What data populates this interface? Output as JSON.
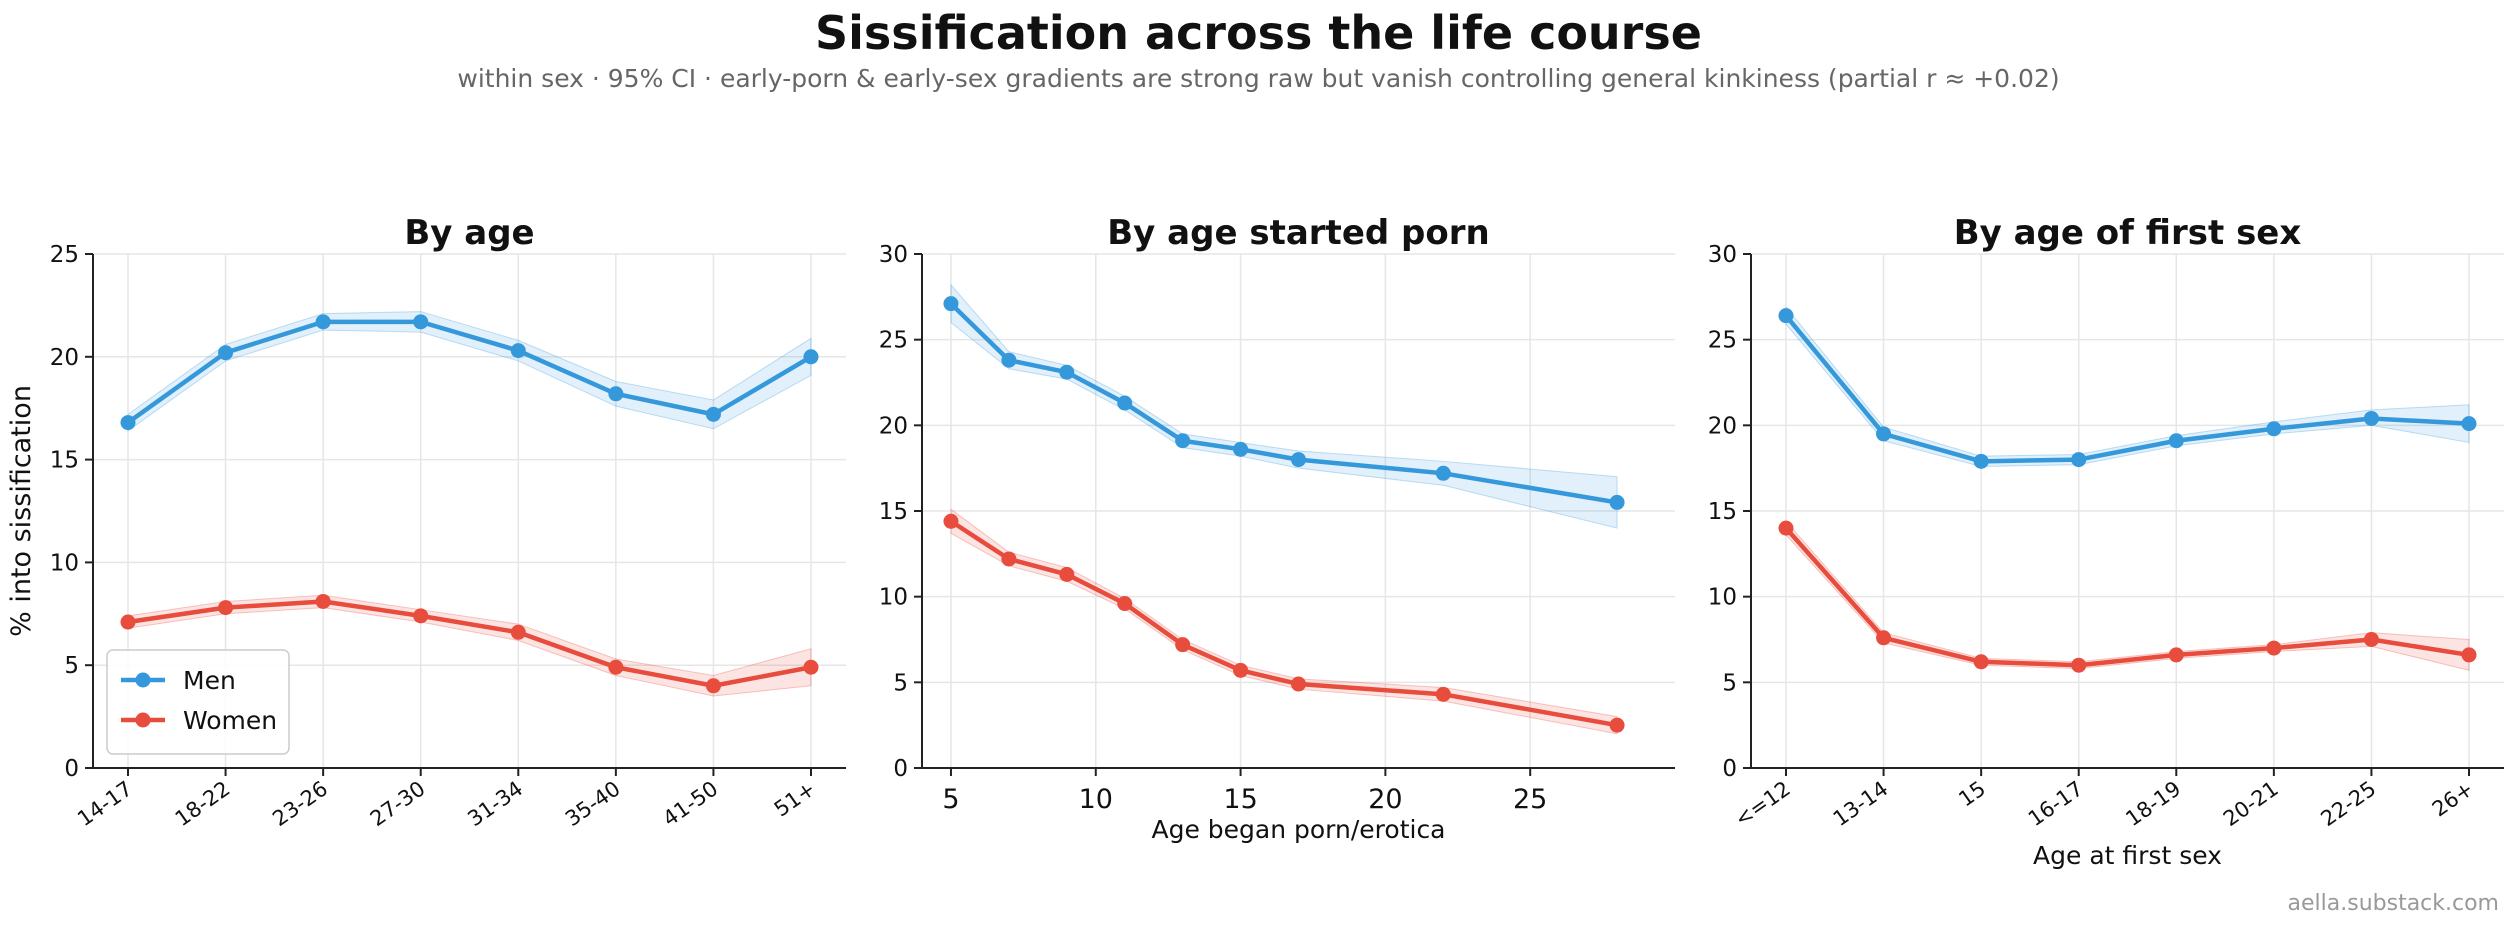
{
  "title": "Sissification across the life course",
  "subtitle": "within sex · 95% CI · early-porn & early-sex gradients are strong raw but vanish controlling general kinkiness (partial r ≈ +0.02)",
  "footer": "aella.substack.com",
  "colors": {
    "men": "#3498db",
    "women": "#e74c3c"
  },
  "chart_data": [
    {
      "type": "line",
      "title": "By age",
      "xlabel": "",
      "ylabel": "% into sissification",
      "x_kind": "categorical",
      "categories": [
        "14-17",
        "18-22",
        "23-26",
        "27-30",
        "31-34",
        "35-40",
        "41-50",
        "51+"
      ],
      "ylim": [
        0,
        25
      ],
      "yticks": [
        0,
        5,
        10,
        15,
        20,
        25
      ],
      "grid": true,
      "legend": "bottom-left",
      "series": [
        {
          "name": "Men",
          "values": [
            16.8,
            20.2,
            21.7,
            21.7,
            20.3,
            18.2,
            17.2,
            20.0
          ],
          "ci_low": [
            16.4,
            19.8,
            21.3,
            21.2,
            19.8,
            17.6,
            16.5,
            19.1
          ],
          "ci_high": [
            17.2,
            20.6,
            22.1,
            22.2,
            20.8,
            18.8,
            17.9,
            20.9
          ]
        },
        {
          "name": "Women",
          "values": [
            7.1,
            7.8,
            8.1,
            7.4,
            6.6,
            4.9,
            4.0,
            4.9
          ],
          "ci_low": [
            6.8,
            7.5,
            7.8,
            7.1,
            6.2,
            4.5,
            3.5,
            4.0
          ],
          "ci_high": [
            7.4,
            8.1,
            8.4,
            7.7,
            7.0,
            5.3,
            4.5,
            5.8
          ]
        }
      ]
    },
    {
      "type": "line",
      "title": "By age started porn",
      "xlabel": "Age began porn/erotica",
      "ylabel": "",
      "x_kind": "numeric",
      "x": [
        5,
        7,
        9,
        11,
        13,
        15,
        17,
        22,
        28
      ],
      "xlim": [
        4,
        30
      ],
      "xticks": [
        5,
        10,
        15,
        20,
        25
      ],
      "ylim": [
        0,
        30
      ],
      "yticks": [
        0,
        5,
        10,
        15,
        20,
        25,
        30
      ],
      "grid": true,
      "series": [
        {
          "name": "Men",
          "values": [
            27.1,
            23.8,
            23.1,
            21.3,
            19.1,
            18.6,
            18.0,
            17.2,
            15.5
          ],
          "ci_low": [
            26.0,
            23.3,
            22.7,
            20.9,
            18.7,
            18.2,
            17.5,
            16.5,
            14.0
          ],
          "ci_high": [
            28.2,
            24.3,
            23.5,
            21.7,
            19.5,
            19.0,
            18.5,
            17.9,
            17.0
          ]
        },
        {
          "name": "Women",
          "values": [
            14.4,
            12.2,
            11.3,
            9.6,
            7.2,
            5.7,
            4.9,
            4.3,
            2.5
          ],
          "ci_low": [
            13.7,
            11.8,
            10.9,
            9.3,
            6.9,
            5.4,
            4.6,
            3.9,
            2.0
          ],
          "ci_high": [
            15.1,
            12.6,
            11.7,
            9.9,
            7.5,
            6.0,
            5.2,
            4.7,
            3.0
          ]
        }
      ]
    },
    {
      "type": "line",
      "title": "By age of first sex",
      "xlabel": "Age at first sex",
      "ylabel": "",
      "x_kind": "categorical",
      "categories": [
        "<=12",
        "13-14",
        "15",
        "16-17",
        "18-19",
        "20-21",
        "22-25",
        "26+"
      ],
      "ylim": [
        0,
        30
      ],
      "yticks": [
        0,
        5,
        10,
        15,
        20,
        25,
        30
      ],
      "grid": true,
      "series": [
        {
          "name": "Men",
          "values": [
            26.4,
            19.5,
            17.9,
            18.0,
            19.1,
            19.8,
            20.4,
            20.1
          ],
          "ci_low": [
            25.9,
            19.1,
            17.6,
            17.7,
            18.8,
            19.5,
            20.0,
            19.0
          ],
          "ci_high": [
            26.9,
            19.9,
            18.2,
            18.3,
            19.4,
            20.2,
            20.9,
            21.2
          ]
        },
        {
          "name": "Women",
          "values": [
            14.0,
            7.6,
            6.2,
            6.0,
            6.6,
            7.0,
            7.5,
            6.6
          ],
          "ci_low": [
            13.6,
            7.3,
            6.0,
            5.8,
            6.4,
            6.8,
            7.1,
            5.7
          ],
          "ci_high": [
            14.4,
            7.9,
            6.4,
            6.2,
            6.8,
            7.2,
            7.9,
            7.5
          ]
        }
      ]
    }
  ]
}
